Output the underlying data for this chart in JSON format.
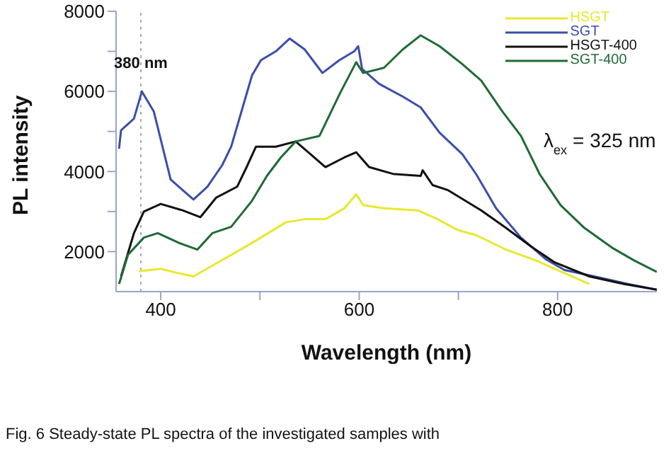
{
  "chart_data": {
    "type": "line",
    "xlabel": "Wavelength (nm)",
    "ylabel": "PL intensity",
    "xlim": [
      355,
      900
    ],
    "ylim": [
      1000,
      8000
    ],
    "xticks": [
      400,
      {
        "value": 500,
        "label": null
      },
      600,
      {
        "value": 700,
        "label": null
      },
      800
    ],
    "yticks": [
      2000,
      {
        "value": 3000,
        "label": null
      },
      4000,
      {
        "value": 5000,
        "label": null
      },
      6000,
      {
        "value": 7000,
        "label": null
      },
      8000
    ],
    "legend": "top right",
    "marker": "none",
    "grid": false,
    "ref_lines": [
      {
        "axis": "x",
        "value": 380,
        "label": "380 nm",
        "line_style": "dotted",
        "color": "#aaaaaa"
      }
    ],
    "annotations": [
      "λ$_{ex}$ = 325 nm",
      "Fig. 6 Steady-state PL spectra of the investigated samples with"
    ],
    "series": [
      {
        "name": "HSGT",
        "color": "#e8e830",
        "x": [
          378,
          400,
          418,
          433,
          452,
          477,
          501,
          526,
          545,
          566,
          585,
          597,
          604,
          625,
          659,
          679,
          699,
          718,
          748,
          778,
          807,
          832
        ],
        "values": [
          1510,
          1570,
          1460,
          1380,
          1650,
          2000,
          2350,
          2730,
          2810,
          2810,
          3080,
          3430,
          3160,
          3080,
          3030,
          2810,
          2540,
          2410,
          2050,
          1780,
          1460,
          1190
        ]
      },
      {
        "name": "SGT",
        "color": "#3a4fa8",
        "x": [
          358,
          360,
          373,
          381,
          393,
          410,
          433,
          447,
          462,
          471,
          492,
          501,
          516,
          530,
          545,
          563,
          580,
          595,
          599,
          603,
          620,
          644,
          662,
          681,
          704,
          718,
          738,
          763,
          788,
          807,
          837,
          871,
          900
        ],
        "values": [
          4570,
          5030,
          5320,
          6000,
          5500,
          3800,
          3300,
          3620,
          4160,
          4620,
          6400,
          6780,
          7000,
          7320,
          7050,
          6460,
          6780,
          7000,
          7130,
          6560,
          6190,
          5870,
          5600,
          4970,
          4430,
          3930,
          3080,
          2350,
          1810,
          1540,
          1380,
          1190,
          1050
        ]
      },
      {
        "name": "HSGT-400",
        "color": "#111111",
        "x": [
          360,
          373,
          383,
          400,
          422,
          440,
          456,
          477,
          486,
          496,
          516,
          536,
          551,
          566,
          585,
          597,
          610,
          634,
          662,
          664,
          674,
          689,
          723,
          748,
          773,
          797,
          832,
          867,
          900
        ],
        "values": [
          1380,
          2460,
          3000,
          3190,
          3030,
          2860,
          3350,
          3620,
          4080,
          4620,
          4620,
          4750,
          4430,
          4110,
          4350,
          4480,
          4110,
          3940,
          3890,
          4030,
          3660,
          3540,
          3030,
          2590,
          2130,
          1730,
          1380,
          1190,
          1050
        ]
      },
      {
        "name": "SGT-400",
        "color": "#1e6b35",
        "x": [
          358,
          367,
          383,
          397,
          418,
          437,
          452,
          471,
          492,
          507,
          521,
          536,
          560,
          581,
          597,
          604,
          625,
          644,
          662,
          681,
          704,
          723,
          744,
          763,
          782,
          803,
          827,
          856,
          877,
          900
        ],
        "values": [
          1190,
          1920,
          2350,
          2460,
          2220,
          2050,
          2460,
          2620,
          3270,
          3890,
          4350,
          4750,
          4890,
          5970,
          6730,
          6460,
          6590,
          7050,
          7400,
          7130,
          6680,
          6270,
          5510,
          4890,
          3930,
          3160,
          2590,
          2080,
          1780,
          1490
        ]
      }
    ]
  }
}
